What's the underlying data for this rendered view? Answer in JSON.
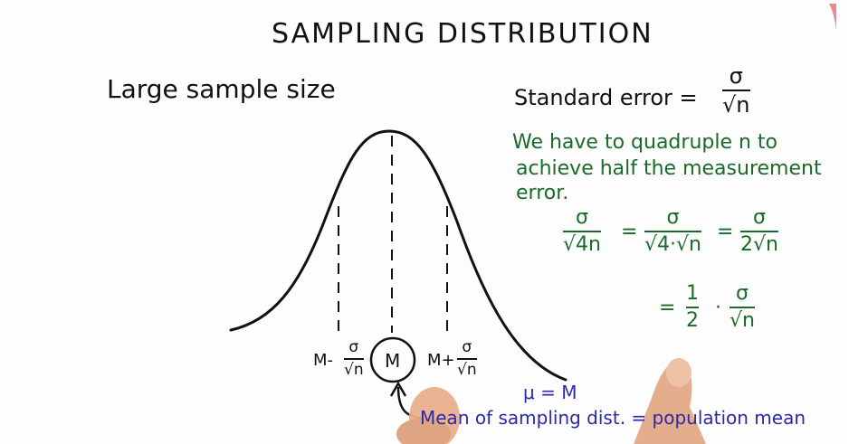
{
  "title": "SAMPLING DISTRIBUTION",
  "subtitle": "Large sample size",
  "standard_error": {
    "label": "Standard error =",
    "num": "σ",
    "den": "√n"
  },
  "note": {
    "line1": "We have to quadruple n to",
    "line2": "achieve half the measurement",
    "line3": "error."
  },
  "equation": {
    "f1_num": "σ",
    "f1_den": "√4n",
    "eq1": "=",
    "f2_num": "σ",
    "f2_den": "√4·√n",
    "eq2": "=",
    "f3_num": "σ",
    "f3_den": "2√n",
    "eq3": "=",
    "f4_num": "1",
    "f4_den": "2",
    "dot": "·",
    "f5_num": "σ",
    "f5_den": "√n"
  },
  "curve_labels": {
    "left_prefix": "M-",
    "left_num": "σ",
    "left_den": "√n",
    "center": "M",
    "right_prefix": "M+",
    "right_num": "σ",
    "right_den": "√n"
  },
  "mu_eq": "μ = M",
  "mean_note": "Mean of sampling dist. = population mean",
  "colors": {
    "ink": "#111111",
    "green": "#1a6b2a",
    "blue": "#2a2aa8",
    "accent_red": "#e07070"
  }
}
